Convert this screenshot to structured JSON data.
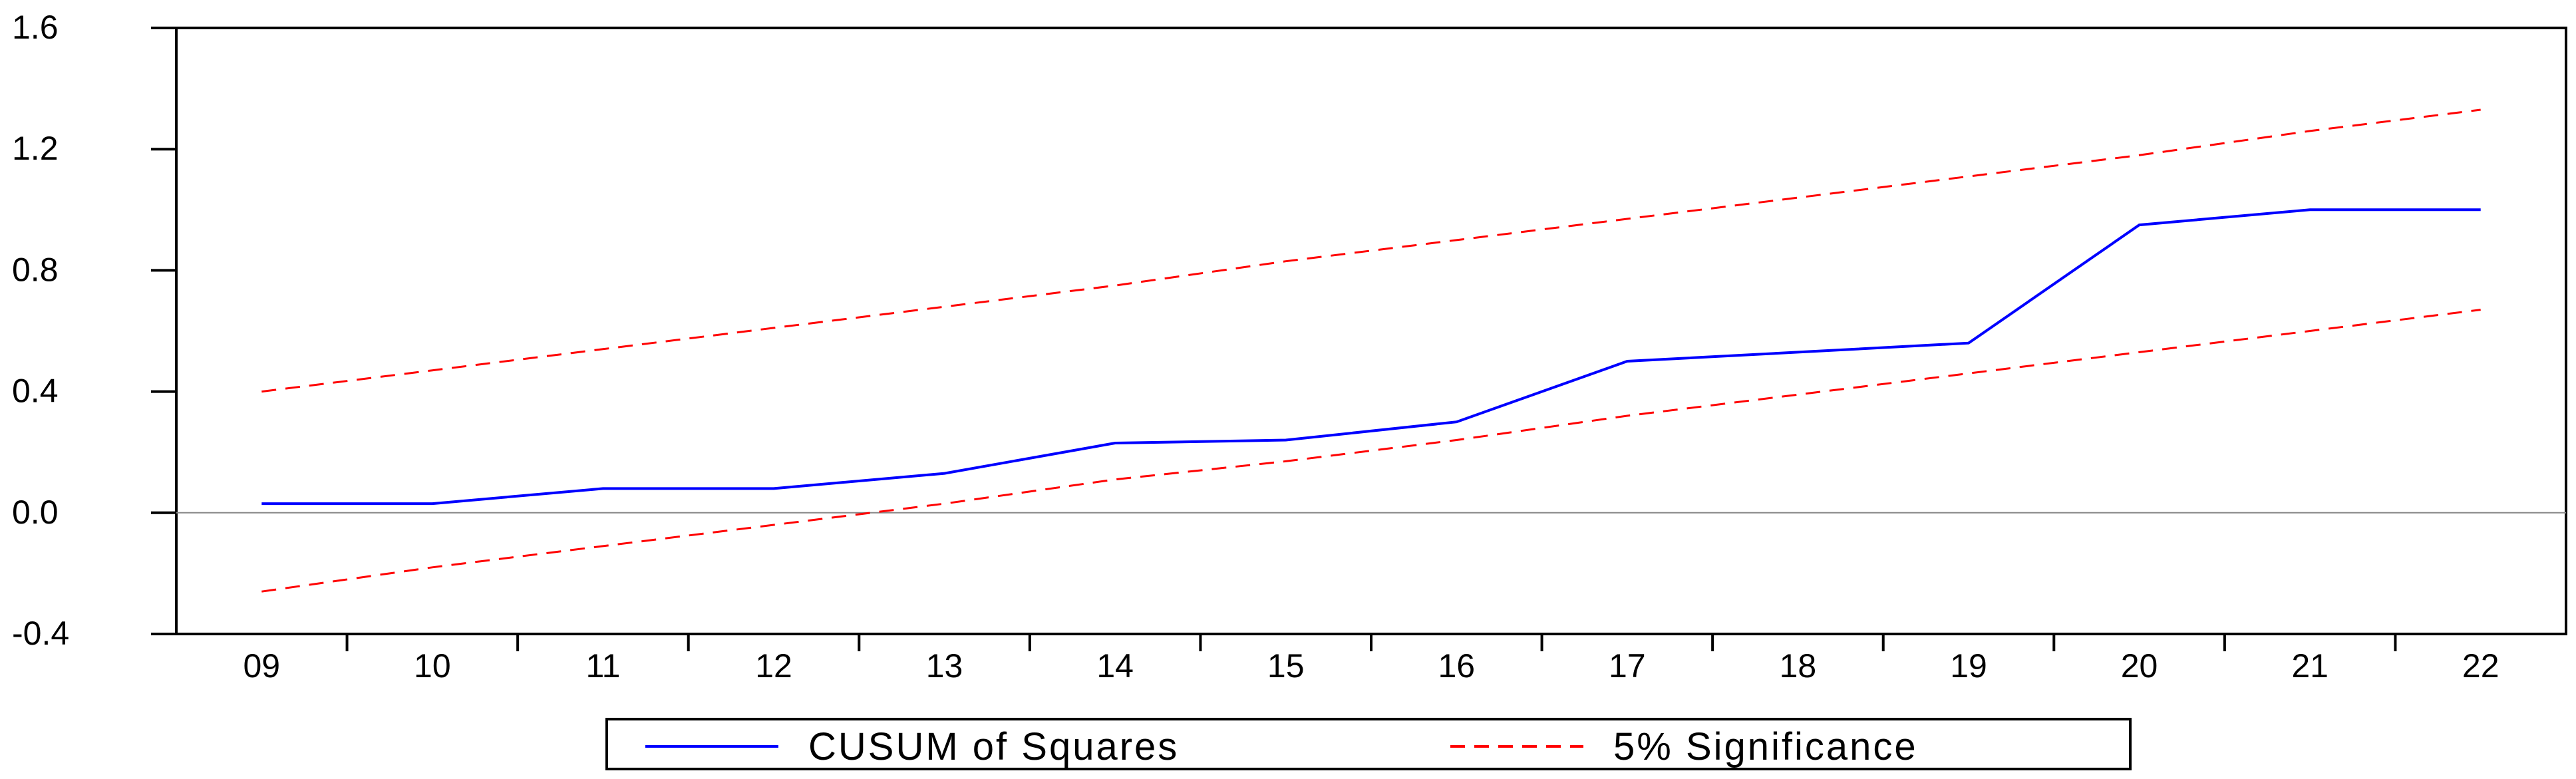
{
  "chart_data": {
    "type": "line",
    "title": "",
    "xlabel": "",
    "ylabel": "",
    "categories": [
      "09",
      "10",
      "11",
      "12",
      "13",
      "14",
      "15",
      "16",
      "17",
      "18",
      "19",
      "20",
      "21",
      "22"
    ],
    "ylim": [
      -0.4,
      1.6
    ],
    "yticks": [
      "-0.4",
      "0.0",
      "0.4",
      "0.8",
      "1.2",
      "1.6"
    ],
    "ytick_values": [
      -0.4,
      0.0,
      0.4,
      0.8,
      1.2,
      1.6
    ],
    "zero_line": true,
    "grid": false,
    "legend_position": "bottom-center",
    "series": [
      {
        "name": "CUSUM of Squares",
        "color": "#0000ff",
        "style": "solid",
        "values": [
          0.03,
          0.03,
          0.08,
          0.08,
          0.13,
          0.23,
          0.24,
          0.3,
          0.5,
          0.53,
          0.56,
          0.95,
          1.0,
          1.0
        ]
      },
      {
        "name": "5% Significance",
        "color": "#ff0000",
        "style": "dashed",
        "values": [
          0.4,
          0.47,
          0.54,
          0.61,
          0.68,
          0.75,
          0.83,
          0.9,
          0.97,
          1.04,
          1.11,
          1.18,
          1.26,
          1.33
        ]
      },
      {
        "name": "",
        "color": "#ff0000",
        "style": "dashed",
        "values": [
          -0.26,
          -0.18,
          -0.11,
          -0.04,
          0.03,
          0.11,
          0.17,
          0.24,
          0.32,
          0.39,
          0.46,
          0.53,
          0.6,
          0.67
        ]
      }
    ]
  }
}
